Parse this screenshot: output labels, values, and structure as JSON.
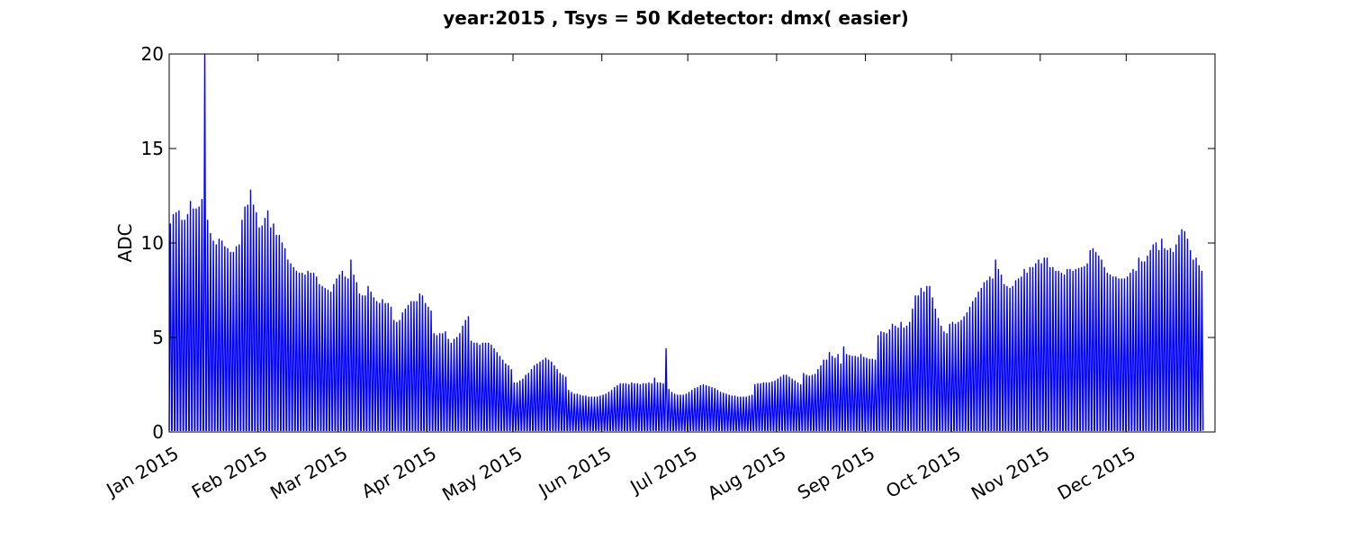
{
  "chart_data": {
    "type": "line",
    "title": "year:2015 , Tsys = 50 Kdetector: dmx( easier)",
    "xlabel": "",
    "ylabel": "ADC",
    "xlim": [
      "2015-01-01",
      "2016-01-01"
    ],
    "ylim": [
      0,
      20
    ],
    "yticks": [
      0,
      5,
      10,
      15,
      20
    ],
    "xticks": [
      {
        "date": "2015-01-01",
        "label": "Jan 2015"
      },
      {
        "date": "2015-02-01",
        "label": "Feb 2015"
      },
      {
        "date": "2015-03-01",
        "label": "Mar 2015"
      },
      {
        "date": "2015-04-01",
        "label": "Apr 2015"
      },
      {
        "date": "2015-05-01",
        "label": "May 2015"
      },
      {
        "date": "2015-06-01",
        "label": "Jun 2015"
      },
      {
        "date": "2015-07-01",
        "label": "Jul 2015"
      },
      {
        "date": "2015-08-01",
        "label": "Aug 2015"
      },
      {
        "date": "2015-09-01",
        "label": "Sep 2015"
      },
      {
        "date": "2015-10-01",
        "label": "Oct 2015"
      },
      {
        "date": "2015-11-01",
        "label": "Nov 2015"
      },
      {
        "date": "2015-12-01",
        "label": "Dec 2015"
      }
    ],
    "grid": false,
    "series": [
      {
        "color": "#0000ff",
        "description": "daily oscillation between ~0 and the daily peak ADC value listed per day",
        "daily_peaks": [
          11.0,
          11.5,
          11.6,
          11.7,
          11.2,
          11.2,
          11.5,
          12.2,
          11.8,
          11.8,
          11.9,
          12.3,
          20.0,
          11.2,
          10.5,
          10.1,
          9.9,
          10.2,
          10.1,
          9.8,
          9.7,
          9.5,
          9.5,
          9.8,
          9.9,
          11.2,
          11.9,
          12.0,
          12.8,
          12.0,
          11.6,
          10.8,
          10.9,
          11.3,
          11.7,
          10.8,
          11.0,
          10.4,
          10.4,
          10.0,
          9.7,
          9.1,
          8.9,
          8.7,
          8.5,
          8.4,
          8.4,
          8.3,
          8.5,
          8.4,
          8.4,
          8.2,
          7.8,
          7.7,
          7.6,
          7.5,
          7.4,
          7.8,
          8.1,
          8.3,
          8.5,
          8.2,
          8.1,
          9.1,
          8.3,
          7.9,
          7.3,
          7.2,
          7.2,
          7.7,
          7.4,
          7.1,
          6.9,
          6.8,
          7.0,
          6.8,
          6.8,
          6.6,
          5.9,
          5.8,
          5.9,
          6.3,
          6.5,
          6.7,
          6.9,
          6.9,
          6.9,
          7.3,
          7.2,
          6.8,
          6.6,
          6.4,
          5.2,
          5.1,
          5.2,
          5.2,
          5.3,
          4.9,
          4.7,
          4.9,
          5.0,
          5.2,
          5.6,
          5.9,
          6.1,
          4.8,
          4.7,
          4.7,
          4.6,
          4.7,
          4.7,
          4.7,
          4.6,
          4.4,
          4.2,
          4.0,
          3.8,
          3.6,
          3.5,
          3.3,
          2.6,
          2.6,
          2.7,
          2.8,
          3.0,
          3.1,
          3.3,
          3.5,
          3.6,
          3.7,
          3.8,
          3.9,
          3.8,
          3.7,
          3.5,
          3.3,
          3.1,
          3.0,
          2.9,
          2.2,
          2.1,
          2.0,
          2.0,
          1.95,
          1.9,
          1.9,
          1.85,
          1.85,
          1.85,
          1.85,
          1.9,
          1.95,
          2.0,
          2.1,
          2.2,
          2.35,
          2.45,
          2.55,
          2.55,
          2.55,
          2.5,
          2.6,
          2.55,
          2.55,
          2.5,
          2.55,
          2.55,
          2.6,
          2.55,
          2.85,
          2.6,
          2.6,
          2.55,
          4.4,
          2.25,
          2.1,
          2.0,
          1.95,
          1.95,
          1.95,
          2.0,
          2.1,
          2.2,
          2.3,
          2.35,
          2.45,
          2.5,
          2.45,
          2.4,
          2.35,
          2.3,
          2.2,
          2.1,
          2.05,
          2.0,
          1.95,
          1.9,
          1.9,
          1.85,
          1.85,
          1.85,
          1.85,
          1.9,
          1.95,
          2.5,
          2.55,
          2.55,
          2.6,
          2.6,
          2.6,
          2.65,
          2.7,
          2.8,
          2.9,
          3.0,
          3.0,
          2.9,
          2.8,
          2.7,
          2.6,
          2.5,
          3.1,
          3.0,
          2.95,
          3.0,
          3.05,
          3.3,
          3.5,
          3.8,
          3.8,
          4.2,
          4.0,
          3.9,
          4.1,
          3.6,
          4.5,
          4.1,
          4.05,
          4.0,
          4.0,
          3.95,
          4.1,
          3.95,
          3.9,
          3.85,
          3.85,
          3.8,
          5.1,
          5.3,
          5.25,
          5.2,
          5.4,
          5.7,
          5.6,
          5.5,
          5.8,
          5.5,
          5.6,
          5.8,
          6.5,
          7.2,
          7.2,
          7.6,
          7.4,
          7.7,
          7.7,
          7.1,
          6.5,
          6.0,
          5.6,
          5.3,
          5.2,
          5.7,
          5.8,
          5.7,
          5.8,
          5.9,
          6.1,
          6.3,
          6.6,
          6.9,
          7.1,
          7.4,
          7.6,
          7.9,
          8.0,
          8.2,
          8.1,
          9.1,
          8.6,
          8.3,
          7.8,
          7.7,
          7.6,
          7.7,
          8.0,
          8.1,
          8.2,
          8.6,
          8.4,
          8.7,
          8.7,
          8.9,
          9.1,
          8.9,
          9.2,
          9.2,
          8.7,
          8.7,
          8.5,
          8.5,
          8.4,
          8.3,
          8.6,
          8.6,
          8.5,
          8.6,
          8.65,
          8.7,
          8.75,
          8.9,
          9.6,
          9.7,
          9.5,
          9.3,
          9.1,
          8.7,
          8.4,
          8.3,
          8.2,
          8.2,
          8.1,
          8.1,
          8.1,
          8.2,
          8.4,
          8.6,
          8.5,
          9.2,
          9.0,
          9.0,
          9.3,
          9.6,
          9.9,
          10.0,
          9.6,
          10.2,
          9.7,
          9.6,
          9.7,
          9.5,
          9.9,
          10.4,
          10.7,
          10.6,
          10.2,
          9.6,
          9.1,
          9.2,
          8.8,
          8.5
        ]
      }
    ]
  }
}
